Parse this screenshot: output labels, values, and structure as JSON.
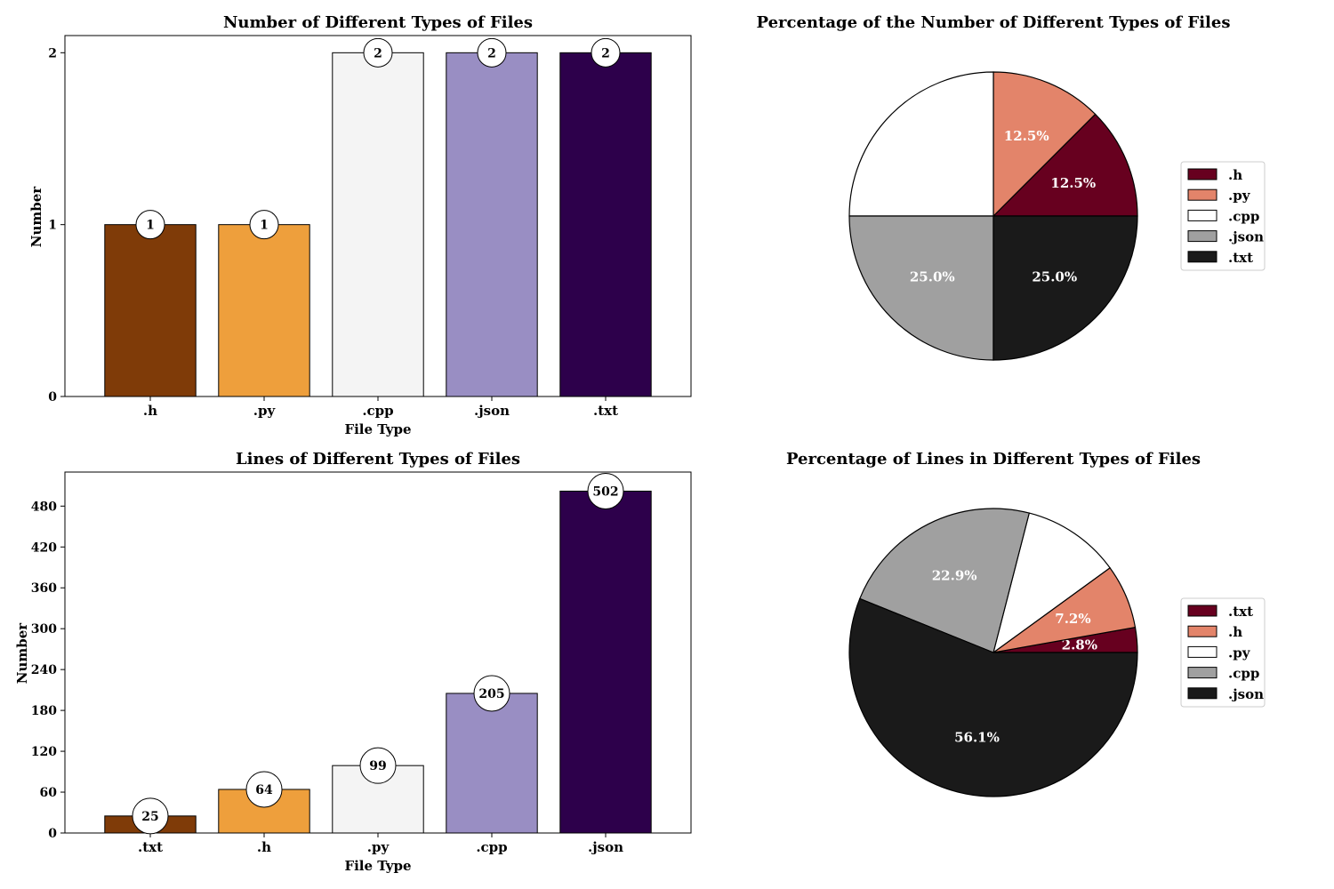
{
  "chart_data": [
    {
      "type": "bar",
      "title": "Number of Different Types of Files",
      "xlabel": "File Type",
      "ylabel": "Number",
      "categories": [
        ".h",
        ".py",
        ".cpp",
        ".json",
        ".txt"
      ],
      "values": [
        1,
        1,
        2,
        2,
        2
      ],
      "labels": [
        "1",
        "1",
        "2",
        "2",
        "2"
      ],
      "colors": [
        "#7f3b08",
        "#ee9f3c",
        "#f4f4f4",
        "#998ec3",
        "#2d004b"
      ],
      "yticks": [
        0,
        1,
        2
      ],
      "ytick_labels": [
        "0",
        "1",
        "2"
      ],
      "ylim": [
        0,
        2.1
      ]
    },
    {
      "type": "pie",
      "title": "Percentage of the Number of Different Types of Files",
      "categories": [
        ".h",
        ".py",
        ".cpp",
        ".json",
        ".txt"
      ],
      "values": [
        12.5,
        12.5,
        25.0,
        25.0,
        25.0
      ],
      "labels": [
        "12.5%",
        "12.5%",
        "",
        "25.0%",
        "25.0%"
      ],
      "colors": [
        "#67001f",
        "#e3846a",
        "#ffffff",
        "#a0a0a0",
        "#1a1a1a"
      ],
      "label_colors": [
        "#ffffff",
        "#ffffff",
        "#ffffff",
        "#ffffff",
        "#ffffff"
      ],
      "legend_position": "right"
    },
    {
      "type": "bar",
      "title": "Lines of Different Types of Files",
      "xlabel": "File Type",
      "ylabel": "Number",
      "categories": [
        ".txt",
        ".h",
        ".py",
        ".cpp",
        ".json"
      ],
      "values": [
        25,
        64,
        99,
        205,
        502
      ],
      "labels": [
        "25",
        "64",
        "99",
        "205",
        "502"
      ],
      "colors": [
        "#7f3b08",
        "#ee9f3c",
        "#f4f4f4",
        "#998ec3",
        "#2d004b"
      ],
      "yticks": [
        0,
        60,
        120,
        180,
        240,
        300,
        360,
        420,
        480
      ],
      "ytick_labels": [
        "0",
        "60",
        "120",
        "180",
        "240",
        "300",
        "360",
        "420",
        "480"
      ],
      "ylim": [
        0,
        530
      ]
    },
    {
      "type": "pie",
      "title": "Percentage of Lines in Different Types of Files",
      "categories": [
        ".txt",
        ".h",
        ".py",
        ".cpp",
        ".json"
      ],
      "values": [
        2.8,
        7.2,
        11.0,
        22.9,
        56.1
      ],
      "labels": [
        "2.8%",
        "7.2%",
        "",
        "22.9%",
        "56.1%"
      ],
      "colors": [
        "#67001f",
        "#e3846a",
        "#ffffff",
        "#a0a0a0",
        "#1a1a1a"
      ],
      "label_colors": [
        "#ffffff",
        "#ffffff",
        "#ffffff",
        "#ffffff",
        "#ffffff"
      ],
      "legend_position": "right"
    }
  ]
}
